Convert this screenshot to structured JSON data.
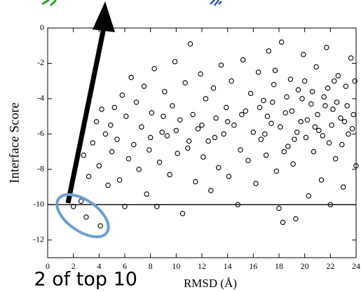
{
  "chart_data": {
    "type": "scatter",
    "x_label": "RMSD (Å)",
    "y_label": "Interface Score",
    "caption": "2 of top 10",
    "color": "#000000",
    "reference_line": -10,
    "xlim": [
      0,
      24
    ],
    "ylim": [
      -13,
      0
    ],
    "xticks": [
      0,
      2,
      4,
      6,
      8,
      10,
      12,
      14,
      16,
      18,
      20,
      22,
      24
    ],
    "yticks": [
      0,
      -2,
      -4,
      -6,
      -8,
      -10,
      -12
    ],
    "x": [
      2.0,
      2.6,
      3.0,
      4.1,
      2.8,
      3.2,
      3.5,
      3.8,
      4.0,
      4.2,
      4.5,
      4.7,
      4.9,
      5.0,
      5.2,
      5.4,
      5.6,
      5.8,
      6.0,
      6.1,
      6.3,
      6.5,
      6.7,
      6.9,
      7.1,
      7.3,
      7.5,
      7.7,
      7.9,
      8.1,
      8.3,
      8.5,
      8.7,
      8.9,
      9.1,
      9.3,
      9.5,
      9.7,
      9.9,
      10.1,
      10.3,
      10.5,
      10.7,
      10.9,
      11.1,
      11.3,
      11.5,
      11.7,
      11.9,
      12.1,
      12.3,
      12.5,
      12.7,
      12.9,
      13.1,
      13.3,
      13.5,
      13.7,
      13.9,
      14.1,
      14.3,
      14.5,
      14.8,
      15.0,
      15.2,
      15.4,
      15.6,
      15.8,
      16.0,
      16.2,
      16.4,
      16.6,
      16.8,
      17.0,
      17.2,
      17.4,
      17.6,
      17.8,
      18.0,
      18.2,
      18.3,
      18.5,
      18.7,
      18.9,
      19.1,
      19.3,
      19.5,
      19.7,
      19.9,
      20.1,
      20.3,
      20.5,
      20.7,
      20.9,
      21.1,
      21.3,
      21.5,
      21.7,
      21.9,
      22.0,
      22.2,
      22.4,
      22.6,
      22.8,
      23.0,
      23.2,
      23.4,
      23.6,
      23.8,
      24.0,
      16.5,
      17.1,
      17.5,
      18.1,
      18.6,
      19.0,
      19.4,
      19.8,
      20.2,
      20.6,
      21.0,
      21.4,
      21.8,
      22.1,
      22.5,
      22.9,
      23.3,
      23.7,
      16.9,
      17.7,
      18.4,
      19.2,
      20.0,
      20.8,
      21.6,
      22.3,
      23.1,
      23.9,
      12.0,
      13.0,
      14.0,
      15.1,
      10.0,
      11.0,
      9.0,
      8.0
    ],
    "y": [
      -10.1,
      -9.8,
      -10.7,
      -11.2,
      -7.2,
      -8.4,
      -6.5,
      -5.3,
      -7.8,
      -4.6,
      -6.0,
      -8.9,
      -5.5,
      -7.0,
      -4.5,
      -6.3,
      -8.6,
      -3.8,
      -10.1,
      -5.0,
      -7.4,
      -2.8,
      -6.6,
      -4.2,
      -8.0,
      -5.6,
      -3.3,
      -9.4,
      -6.9,
      -4.8,
      -2.3,
      -10.1,
      -7.6,
      -5.9,
      -3.6,
      -6.1,
      -8.3,
      -4.4,
      -1.9,
      -7.1,
      -5.2,
      -10.5,
      -3.1,
      -6.8,
      -0.9,
      -4.9,
      -8.7,
      -5.7,
      -2.6,
      -7.3,
      -4.0,
      -6.4,
      -9.2,
      -3.4,
      -5.1,
      -7.9,
      -2.1,
      -6.0,
      -4.5,
      -8.4,
      -3.0,
      -5.5,
      -10.0,
      -6.9,
      -1.8,
      -4.7,
      -7.5,
      -3.7,
      -5.9,
      -8.8,
      -2.5,
      -6.3,
      -4.1,
      -7.2,
      -1.3,
      -5.4,
      -3.2,
      -8.1,
      -10.2,
      -0.8,
      -11.0,
      -4.8,
      -6.7,
      -2.9,
      -7.7,
      -10.8,
      -3.5,
      -5.3,
      -1.5,
      -6.2,
      -9.5,
      -4.3,
      -7.0,
      -2.2,
      -5.8,
      -8.6,
      -3.9,
      -1.1,
      -6.5,
      -10.0,
      -4.6,
      -7.4,
      -2.7,
      -5.1,
      -9.0,
      -3.3,
      -6.0,
      -1.7,
      -4.9,
      -7.8,
      -4.5,
      -5.0,
      -4.2,
      -5.6,
      -3.9,
      -4.7,
      -5.9,
      -4.0,
      -5.2,
      -3.6,
      -4.9,
      -6.1,
      -3.4,
      -5.5,
      -4.2,
      -6.6,
      -4.4,
      -5.7,
      -6.0,
      -2.4,
      -7.0,
      -6.3,
      -3.0,
      -5.6,
      -4.4,
      -3.0,
      -5.3,
      -3.0,
      -5.5,
      -6.2,
      -5.3,
      -4.9,
      -5.8,
      -6.4,
      -5.0,
      -6.2
    ]
  }
}
